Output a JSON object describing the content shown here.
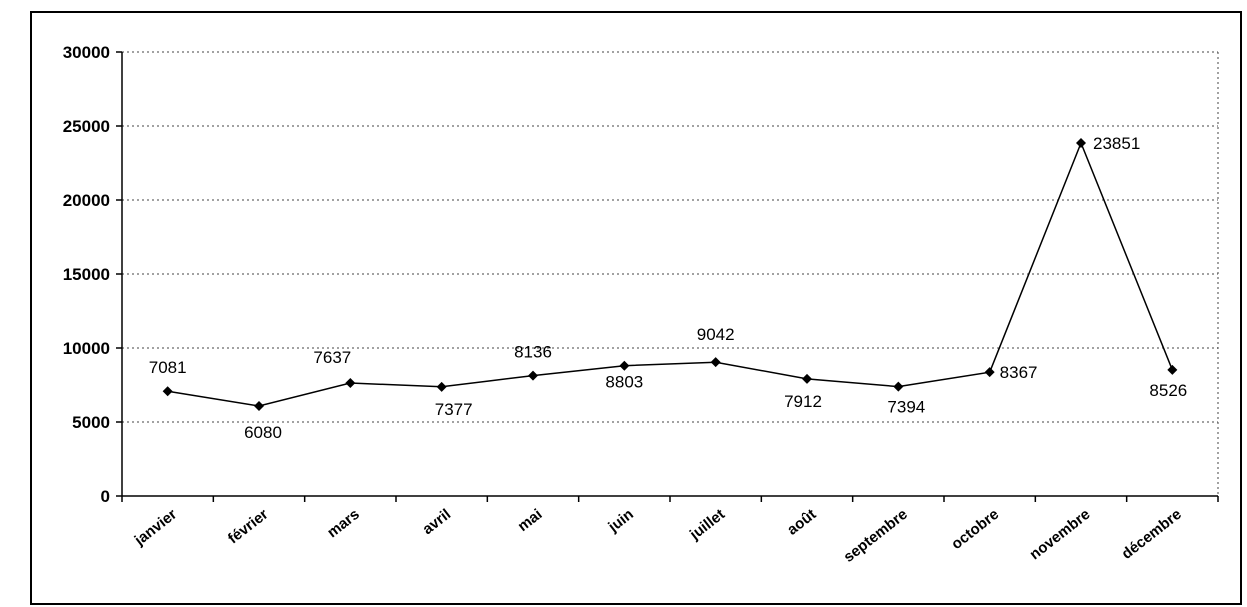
{
  "chart_data": {
    "type": "line",
    "title": "",
    "xlabel": "",
    "ylabel": "",
    "categories": [
      "janvier",
      "février",
      "mars",
      "avril",
      "mai",
      "juin",
      "juillet",
      "août",
      "septembre",
      "octobre",
      "novembre",
      "décembre"
    ],
    "series": [
      {
        "values": [
          7081,
          6080,
          7637,
          7377,
          8136,
          8803,
          9042,
          7912,
          7394,
          8367,
          23851,
          8526
        ]
      }
    ],
    "ylim": [
      0,
      30000
    ],
    "yticks": [
      0,
      5000,
      10000,
      15000,
      20000,
      25000,
      30000
    ],
    "ytick_labels": [
      "0",
      "5000",
      "10000",
      "15000",
      "20000",
      "25000",
      "30000"
    ],
    "grid": true,
    "line_color": "#000000",
    "marker": "diamond"
  }
}
